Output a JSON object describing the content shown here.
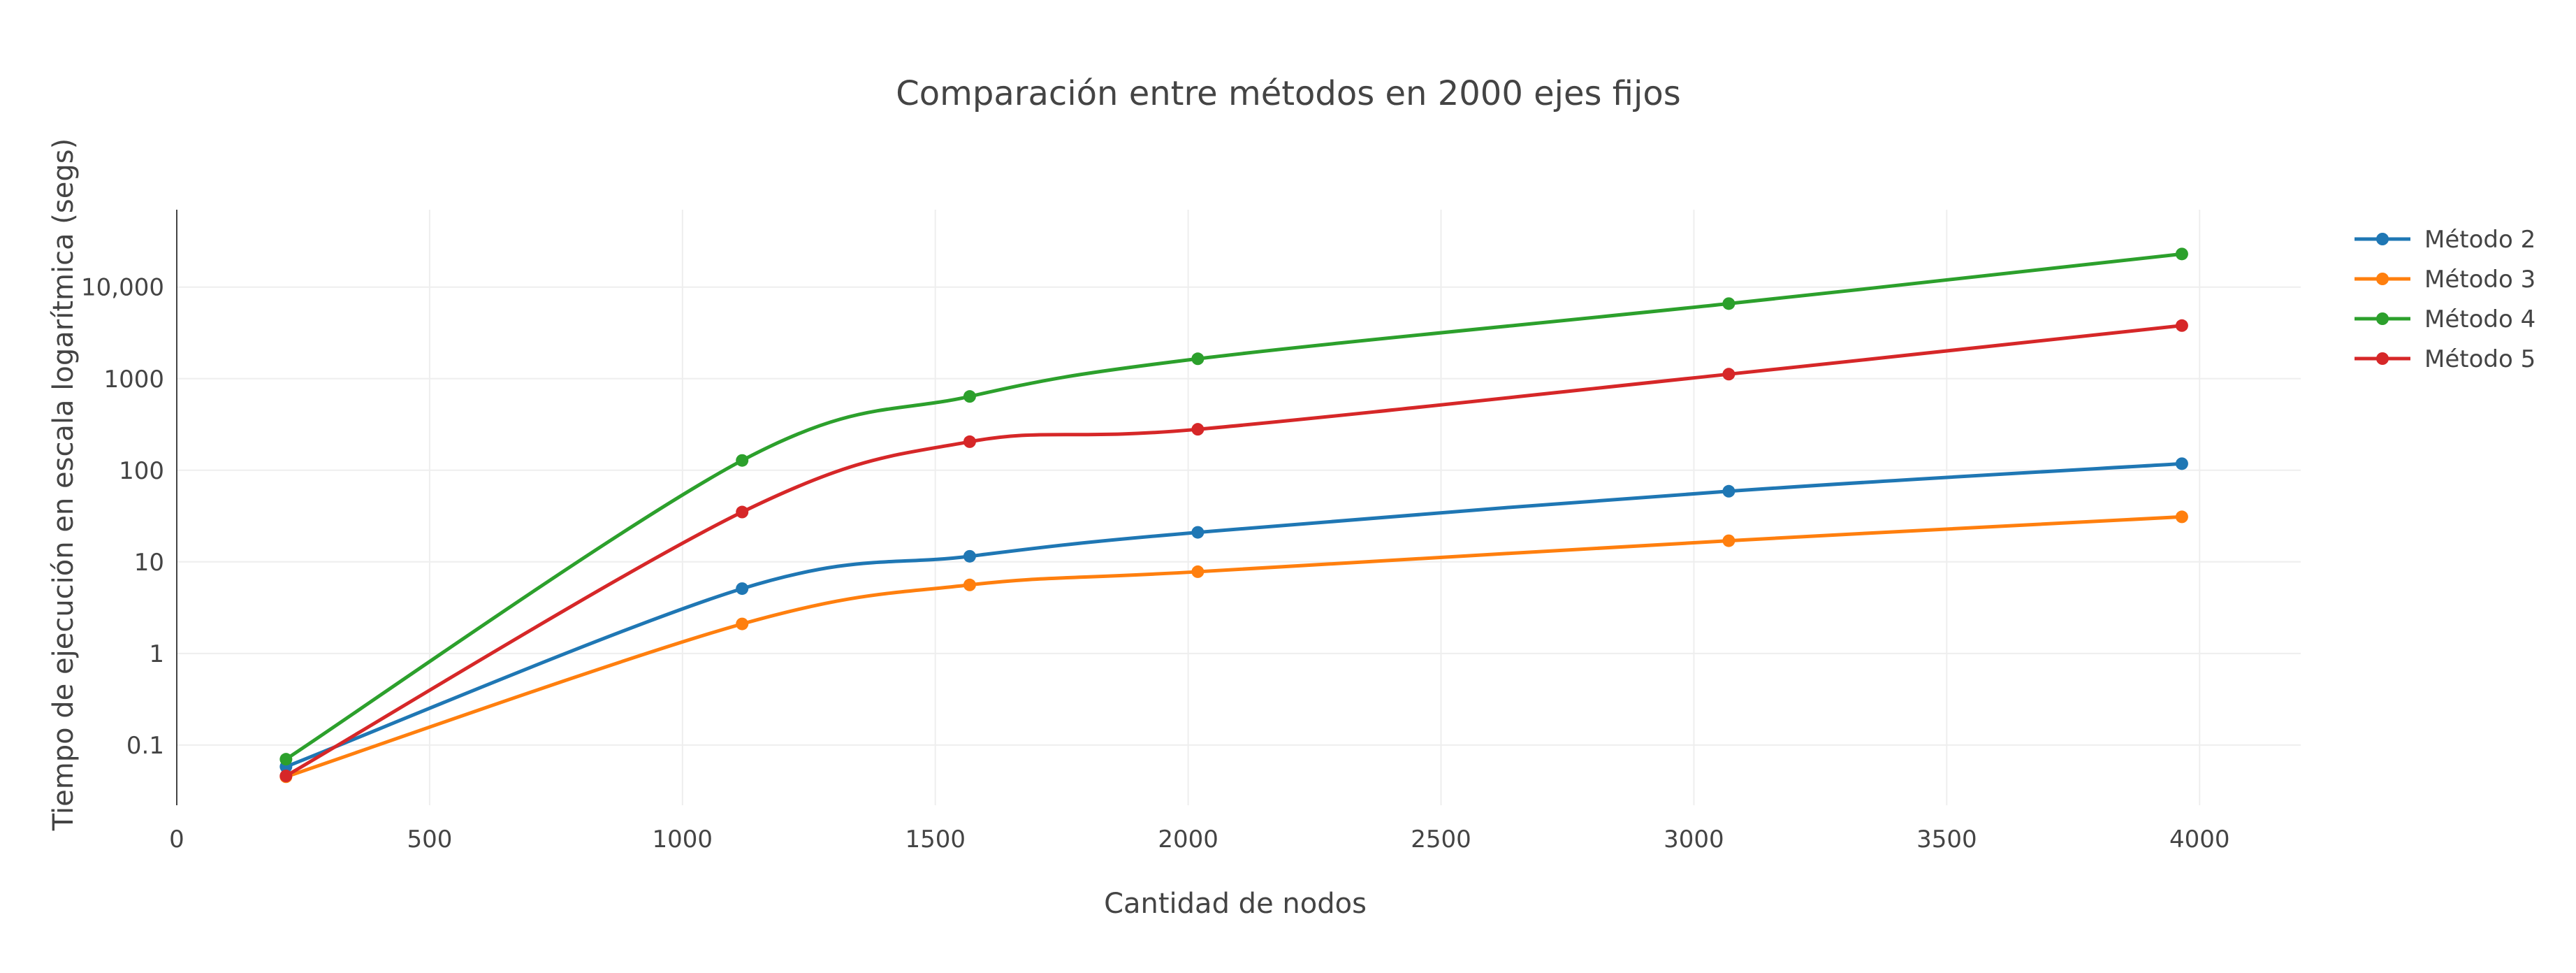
{
  "chart_data": {
    "type": "line",
    "title": "Comparación entre métodos en 2000 ejes fijos",
    "xlabel": "Cantidad de nodos",
    "ylabel": "Tiempo de ejecución en escala logarítmica (segs)",
    "x_scale": "linear",
    "y_scale": "log",
    "xlim": [
      0,
      4200
    ],
    "ylim": [
      0.022,
      70000
    ],
    "x_ticks": [
      0,
      500,
      1000,
      1500,
      2000,
      2500,
      3000,
      3500,
      4000
    ],
    "x_tick_labels": [
      "0",
      "500",
      "1000",
      "1500",
      "2000",
      "2500",
      "3000",
      "3500",
      "4000"
    ],
    "y_ticks": [
      0.1,
      1,
      10,
      100,
      1000,
      10000
    ],
    "y_tick_labels": [
      "0.1",
      "1",
      "10",
      "100",
      "1000",
      "10,000"
    ],
    "grid": true,
    "legend_position": "top-right",
    "x": [
      216,
      1118,
      1568,
      2019,
      3069,
      3965
    ],
    "series": [
      {
        "name": "Método 2",
        "color": "#1f77b4",
        "values": [
          0.058,
          5.1,
          11.5,
          21,
          59,
          118
        ]
      },
      {
        "name": "Método 3",
        "color": "#ff7f0e",
        "values": [
          0.045,
          2.1,
          5.6,
          7.8,
          17,
          31
        ]
      },
      {
        "name": "Método 4",
        "color": "#2ca02c",
        "values": [
          0.07,
          128,
          640,
          1650,
          6600,
          23000
        ]
      },
      {
        "name": "Método 5",
        "color": "#d62728",
        "values": [
          0.046,
          35,
          205,
          280,
          1120,
          3800
        ]
      }
    ]
  }
}
